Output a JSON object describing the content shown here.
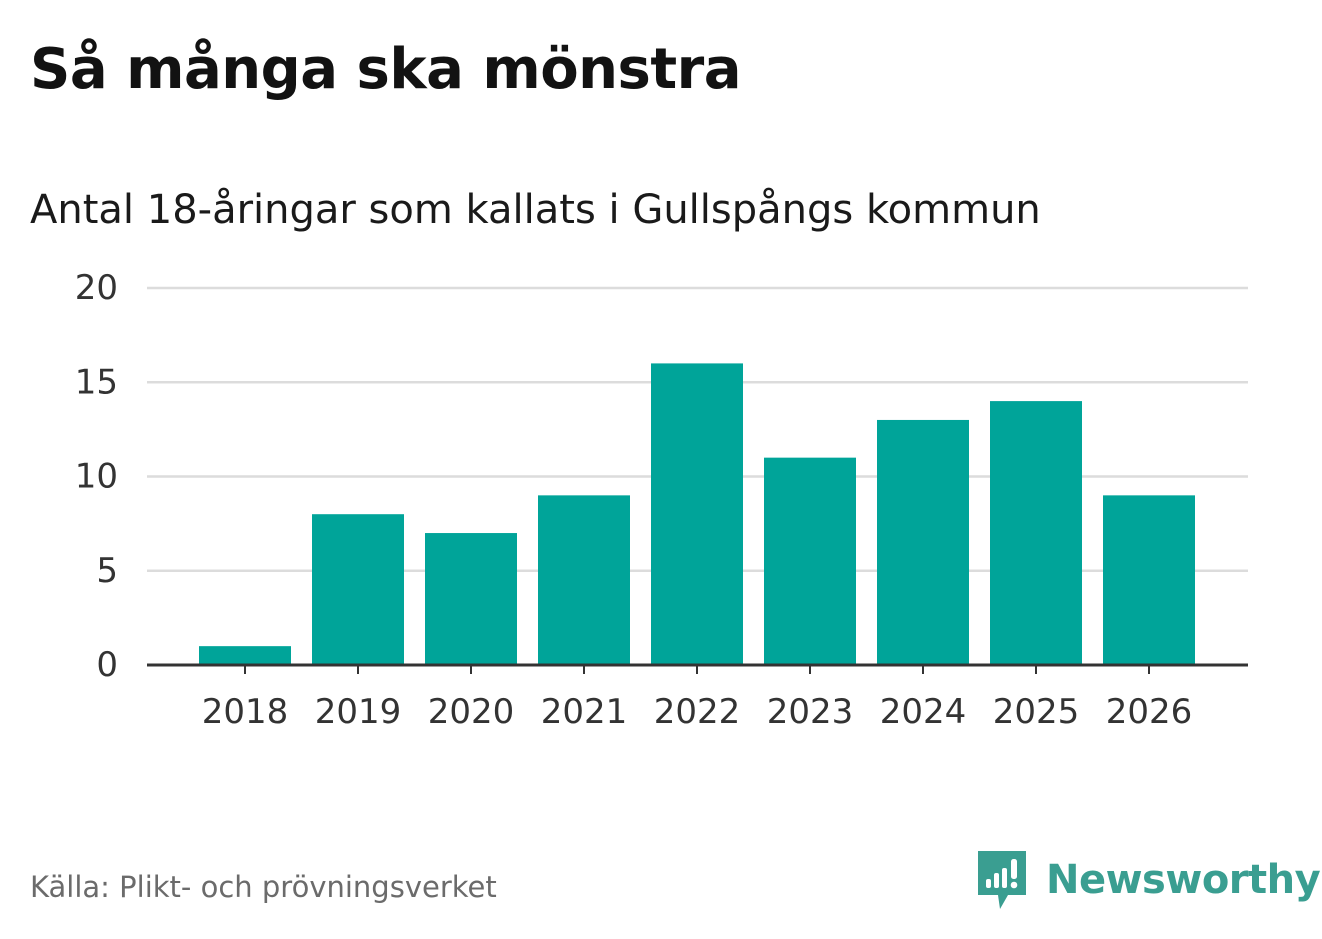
{
  "header": {
    "title": "Så många ska mönstra",
    "subtitle": "Antal 18-åringar som kallats i Gullspångs kommun"
  },
  "footer": {
    "source": "Källa: Plikt- och prövningsverket",
    "brand": "Newsworthy"
  },
  "colors": {
    "bar": "#00a499",
    "grid": "#dcdcdc",
    "axis": "#333333",
    "brand": "#3a9e91"
  },
  "chart_data": {
    "type": "bar",
    "title": "Så många ska mönstra",
    "subtitle": "Antal 18-åringar som kallats i Gullspångs kommun",
    "xlabel": "",
    "ylabel": "",
    "categories": [
      "2018",
      "2019",
      "2020",
      "2021",
      "2022",
      "2023",
      "2024",
      "2025",
      "2026"
    ],
    "values": [
      1,
      8,
      7,
      9,
      16,
      11,
      13,
      14,
      9
    ],
    "ylim": [
      0,
      20
    ],
    "yticks": [
      0,
      5,
      10,
      15,
      20
    ],
    "grid": true,
    "legend": "none"
  }
}
